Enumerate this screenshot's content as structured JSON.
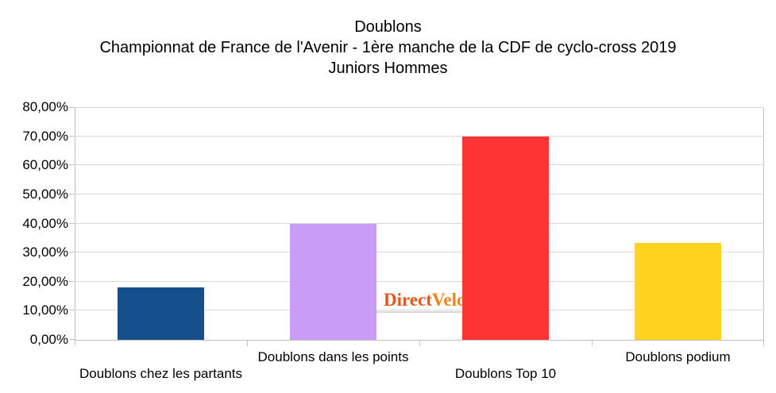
{
  "title": {
    "line1": "Doublons",
    "line2": "Championnat de France de l'Avenir - 1ère manche de la CDF de cyclo-cross 2019",
    "line3": "Juniors Hommes"
  },
  "watermark": {
    "part1": "Direct",
    "part2": "Velo",
    "color_part1": "#e2571c",
    "color_part2": "#f0831e",
    "underline_color": "#d8d8d8"
  },
  "chart_data": {
    "type": "bar",
    "title": "Doublons",
    "subtitle": "Championnat de France de l'Avenir - 1ère manche de la CDF de cyclo-cross 2019",
    "subtitle2": "Juniors Hommes",
    "categories": [
      "Doublons chez les partants",
      "Doublons dans les points",
      "Doublons Top 10",
      "Doublons podium"
    ],
    "values": [
      18,
      40,
      70,
      33.33
    ],
    "value_labels": [
      "18,00%",
      "40,00%",
      "70,00%",
      "33,33%"
    ],
    "colors": [
      "#15508c",
      "#c99df5",
      "#fc3434",
      "#ffd320"
    ],
    "xlabel": "",
    "ylabel": "",
    "ylim": [
      0,
      80
    ],
    "ytick_step": 10,
    "ytick_labels": [
      "0,00%",
      "10,00%",
      "20,00%",
      "30,00%",
      "40,00%",
      "50,00%",
      "60,00%",
      "70,00%",
      "80,00%"
    ],
    "grid": true,
    "legend_position": "none",
    "label_stagger": true,
    "gridline_color": "#d9d9d9",
    "axis_color": "#c0c0c0"
  }
}
